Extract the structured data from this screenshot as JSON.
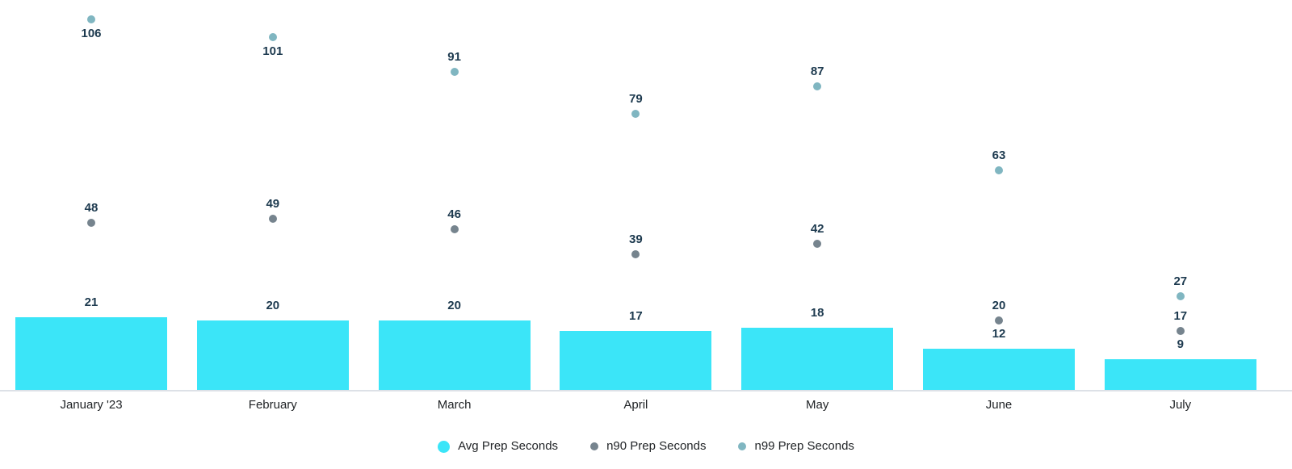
{
  "chart_data": {
    "type": "bar",
    "title": "",
    "xlabel": "",
    "ylabel": "",
    "categories": [
      "January '23",
      "February",
      "March",
      "April",
      "May",
      "June",
      "July"
    ],
    "series": [
      {
        "name": "Avg Prep Seconds",
        "type": "bar",
        "color": "#3BE5F8",
        "values": [
          21,
          20,
          20,
          17,
          18,
          12,
          9
        ]
      },
      {
        "name": "n90 Prep Seconds",
        "type": "scatter",
        "color": "#76848E",
        "values": [
          48,
          49,
          46,
          39,
          42,
          20,
          17
        ]
      },
      {
        "name": "n99 Prep Seconds",
        "type": "scatter",
        "color": "#80B6C1",
        "values": [
          106,
          101,
          91,
          79,
          87,
          63,
          27
        ]
      }
    ],
    "ylim": [
      0,
      111.6
    ],
    "grid": false,
    "data_labels": true,
    "legend_position": "bottom"
  },
  "colors": {
    "value_label": "#1D3A4F",
    "axis_text": "#212427",
    "axis_line": "#DDE1E7",
    "background": "#FFFFFF"
  }
}
